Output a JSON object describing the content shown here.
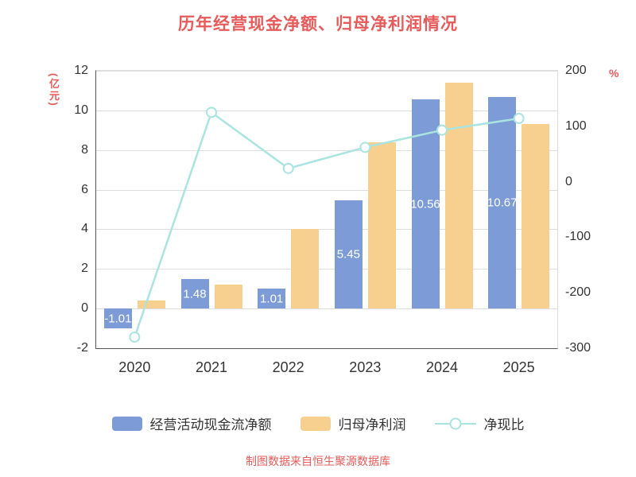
{
  "title": "历年经营现金净额、归母净利润情况",
  "footer": "制图数据来自恒生聚源数据库",
  "colors": {
    "accent": "#e85a5a",
    "tick_text": "#333333",
    "grid": "#dddddd"
  },
  "chart_data": {
    "type": "bar",
    "subtype": "grouped bars with overlay line on secondary axis",
    "title": "历年经营现金净额、归母净利润情况",
    "categories": [
      "2020",
      "2021",
      "2022",
      "2023",
      "2024",
      "2025"
    ],
    "series": [
      {
        "name": "经营活动现金流净额",
        "type": "bar",
        "axis": "left",
        "color": "#7d9bd6",
        "values": [
          -1.01,
          1.48,
          1.01,
          5.45,
          10.56,
          10.67
        ],
        "labels": [
          "-1.01",
          "1.48",
          "1.01",
          "5.45",
          "10.56",
          "10.67"
        ]
      },
      {
        "name": "归母净利润",
        "type": "bar",
        "axis": "left",
        "color": "#f7cf8e",
        "values": [
          0.4,
          1.2,
          4.0,
          8.4,
          11.4,
          9.3
        ]
      },
      {
        "name": "净现比",
        "type": "line",
        "axis": "right",
        "color": "#a9e4e0",
        "values": [
          -280,
          125,
          24,
          62,
          93,
          114
        ]
      }
    ],
    "left_axis": {
      "label": "(亿元)",
      "min": -2,
      "max": 12,
      "ticks": [
        12,
        10,
        8,
        6,
        4,
        2,
        0,
        -2
      ]
    },
    "right_axis": {
      "label": "%",
      "min": -300,
      "max": 200,
      "ticks": [
        200,
        100,
        0,
        -100,
        -200,
        -300
      ]
    },
    "grid": true,
    "legend_position": "bottom"
  }
}
